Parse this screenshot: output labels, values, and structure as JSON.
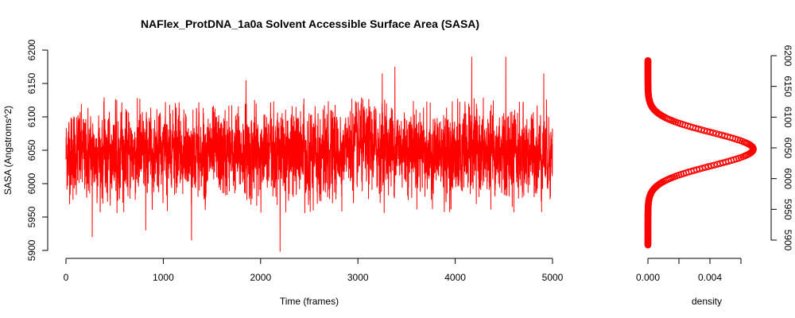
{
  "chart_data": [
    {
      "type": "line",
      "title": "NAFlex_ProtDNA_1a0a Solvent Accessible Surface Area (SASA)",
      "xlabel": "Time (frames)",
      "ylabel": "SASA (Angstroms^2)",
      "xlim": [
        0,
        5000
      ],
      "ylim": [
        5900,
        6200
      ],
      "x_ticks": [
        "0",
        "1000",
        "2000",
        "3000",
        "4000",
        "5000"
      ],
      "y_ticks": [
        "5900",
        "5950",
        "6000",
        "6050",
        "6100",
        "6150",
        "6200"
      ],
      "series": [
        {
          "color": "#ff0000",
          "mean": 6045,
          "typical_range": [
            5975,
            6110
          ],
          "n_frames": 5001,
          "extremes": [
            {
              "x": 270,
              "y": 5920
            },
            {
              "x": 820,
              "y": 5930
            },
            {
              "x": 1290,
              "y": 5915
            },
            {
              "x": 2200,
              "y": 5898
            },
            {
              "x": 3020,
              "y": 6110
            },
            {
              "x": 4170,
              "y": 6190
            },
            {
              "x": 4520,
              "y": 6190
            },
            {
              "x": 4910,
              "y": 6165
            },
            {
              "x": 1850,
              "y": 6155
            },
            {
              "x": 3250,
              "y": 6165
            },
            {
              "x": 3380,
              "y": 6175
            }
          ]
        }
      ],
      "grid": false
    },
    {
      "type": "scatter",
      "xlabel": "density",
      "xlim": [
        0,
        0.0058
      ],
      "ylim": [
        5900,
        6200
      ],
      "x_ticks": [
        "0.000",
        "0.004"
      ],
      "x_tick_values": [
        0,
        0.002,
        0.004,
        0.006
      ],
      "y_ticks": [
        "5900",
        "5950",
        "6000",
        "6050",
        "6100",
        "6150",
        "6200"
      ],
      "series": [
        {
          "color": "#ff0000",
          "distribution": "normal",
          "mean": 6048,
          "sd": 27,
          "peak_density": 0.0068,
          "y_range": [
            5892,
            6192
          ]
        }
      ]
    }
  ]
}
